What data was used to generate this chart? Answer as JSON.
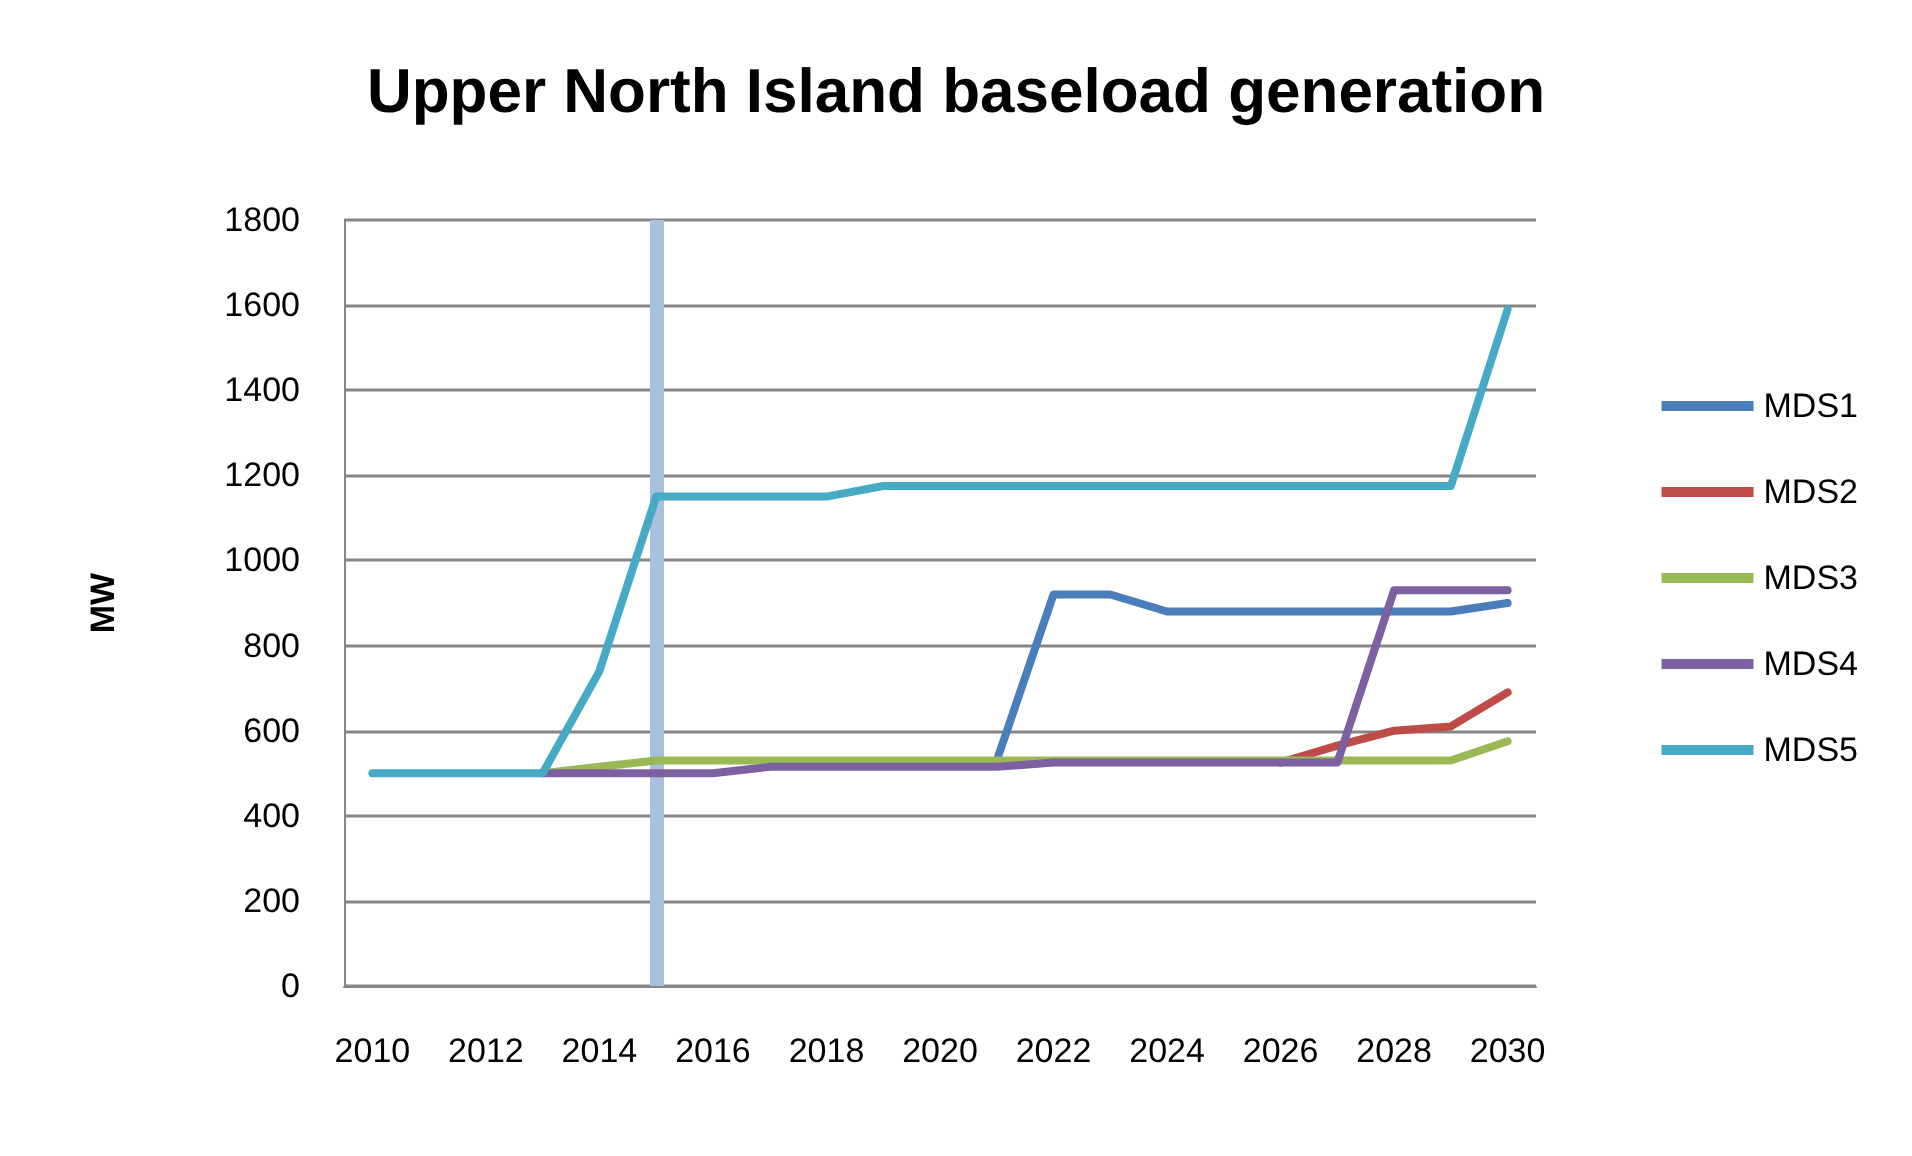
{
  "chart_data": {
    "type": "line",
    "title": "Upper North Island baseload generation",
    "ylabel": "MW",
    "x": [
      2010,
      2011,
      2012,
      2013,
      2014,
      2015,
      2016,
      2017,
      2018,
      2019,
      2020,
      2021,
      2022,
      2023,
      2024,
      2025,
      2026,
      2027,
      2028,
      2029,
      2030
    ],
    "xlim": [
      2009.5,
      2030.5
    ],
    "xticks": [
      2010,
      2012,
      2014,
      2016,
      2018,
      2020,
      2022,
      2024,
      2026,
      2028,
      2030
    ],
    "ylim": [
      0,
      1800
    ],
    "yticks": [
      0,
      200,
      400,
      600,
      800,
      1000,
      1200,
      1400,
      1600,
      1800
    ],
    "series": [
      {
        "name": "MDS1",
        "color": "#4a7ebb",
        "values": [
          null,
          null,
          null,
          null,
          null,
          null,
          null,
          null,
          null,
          null,
          null,
          530,
          920,
          920,
          880,
          880,
          880,
          880,
          880,
          880,
          900
        ]
      },
      {
        "name": "MDS2",
        "color": "#be4b48",
        "values": [
          null,
          null,
          null,
          null,
          null,
          null,
          null,
          null,
          null,
          null,
          null,
          null,
          null,
          null,
          null,
          null,
          525,
          565,
          600,
          610,
          690
        ]
      },
      {
        "name": "MDS3",
        "color": "#98b954",
        "values": [
          null,
          null,
          null,
          500,
          515,
          530,
          530,
          530,
          530,
          530,
          530,
          530,
          530,
          530,
          530,
          530,
          530,
          530,
          530,
          530,
          575
        ]
      },
      {
        "name": "MDS4",
        "color": "#7d60a0",
        "values": [
          null,
          null,
          null,
          500,
          500,
          500,
          500,
          515,
          515,
          515,
          515,
          515,
          525,
          525,
          525,
          525,
          525,
          525,
          930,
          930,
          930
        ]
      },
      {
        "name": "MDS5",
        "color": "#46aac5",
        "values": [
          500,
          500,
          500,
          500,
          740,
          1150,
          1150,
          1150,
          1150,
          1175,
          1175,
          1175,
          1175,
          1175,
          1175,
          1175,
          1175,
          1175,
          1175,
          1175,
          1590
        ]
      }
    ],
    "ref_lines": [
      {
        "axis": "x",
        "value": 2015,
        "color": "#a7c0de"
      }
    ],
    "grid": "y",
    "legend": "right",
    "marker": "none",
    "line_style": "solid"
  }
}
